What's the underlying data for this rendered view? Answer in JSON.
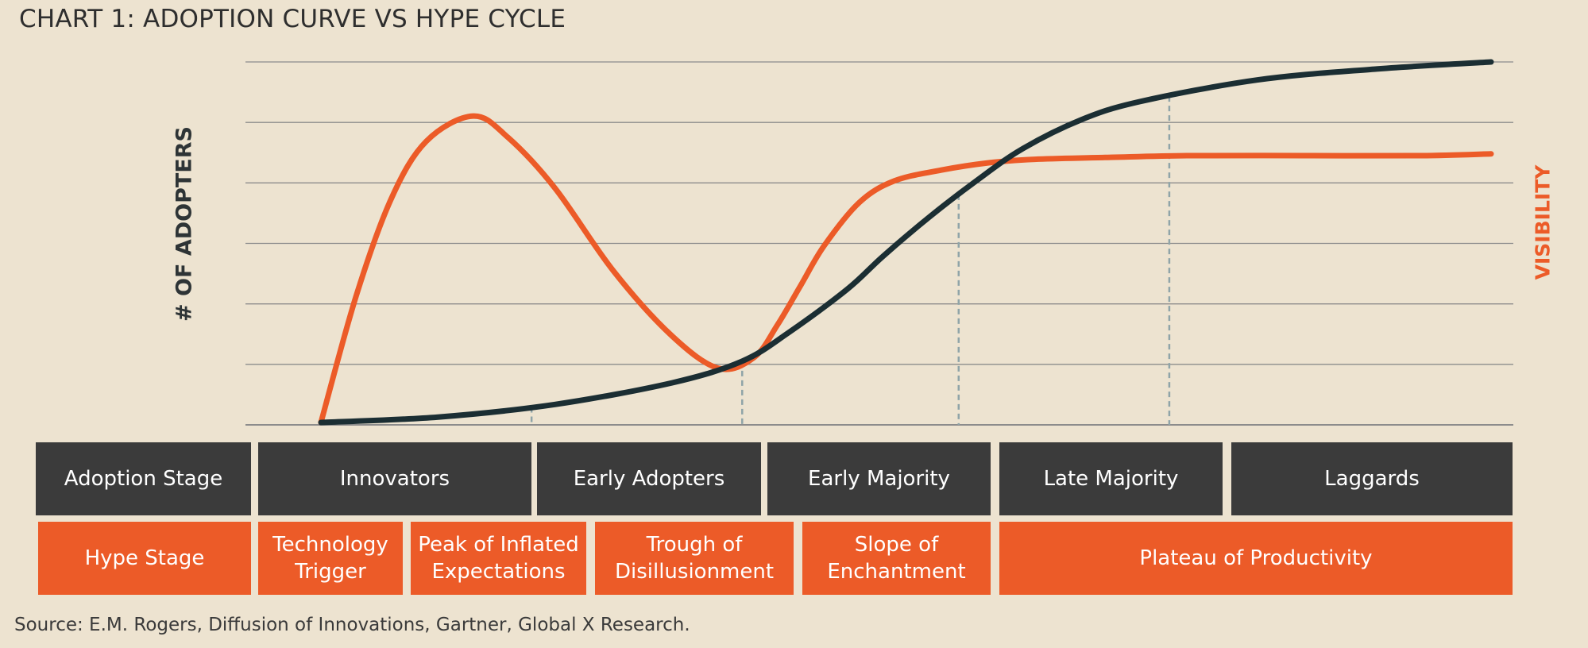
{
  "title": "CHART 1: ADOPTION CURVE VS HYPE CYCLE",
  "source": "Source: E.M. Rogers, Diffusion of Innovations, Gartner, Global X Research.",
  "colors": {
    "background": "#EDE3D0",
    "adoption": "#1B2E33",
    "hype": "#EC5B28",
    "dark_cell": "#3B3B3B",
    "divider": "#8FA4A8",
    "gridline": "#8C8C8C"
  },
  "chart_data": {
    "type": "line",
    "title": "CHART 1: ADOPTION CURVE VS HYPE CYCLE",
    "ylabel": "# OF ADOPTERS",
    "ylabel_right": "VISIBILITY",
    "x_range": [
      0,
      100
    ],
    "y_range": [
      0,
      100
    ],
    "gridlines": 6,
    "grid": true,
    "series": [
      {
        "name": "Adoption curve (# of adopters)",
        "x": [
          0,
          10,
          20,
          30,
          36,
          40,
          45,
          48,
          52,
          56,
          60,
          65,
          70,
          80,
          90,
          100
        ],
        "y": [
          0,
          1.5,
          5,
          11,
          17,
          25,
          37,
          46,
          57,
          67,
          76,
          84,
          89,
          95,
          98,
          100
        ]
      },
      {
        "name": "Hype cycle (visibility)",
        "x": [
          0,
          3,
          6,
          9,
          13,
          16,
          20,
          25,
          30,
          34,
          37,
          39,
          41,
          43,
          46,
          49,
          53,
          57,
          61,
          67,
          74,
          84,
          94,
          100
        ],
        "y": [
          0,
          35,
          62,
          78,
          85,
          79,
          65,
          42,
          24,
          15,
          18,
          27,
          38,
          49,
          61,
          67,
          70,
          72,
          73,
          73.5,
          74,
          74,
          74,
          74.5
        ]
      }
    ],
    "stage_dividers_x": [
      18,
      36,
      54.5,
      72.5
    ],
    "adoption_stages": [
      "Adoption Stage",
      "Innovators",
      "Early Adopters",
      "Early Majority",
      "Late Majority",
      "Laggards"
    ],
    "hype_stages": [
      "Hype Stage",
      "Technology Trigger",
      "Peak of Inflated Expectations",
      "Trough of Disillusionment",
      "Slope of Enchantment",
      "Plateau of Productivity"
    ]
  },
  "adoption_row": {
    "cells": [
      "Adoption Stage",
      "Innovators",
      "Early Adopters",
      "Early Majority",
      "Late Majority",
      "Laggards"
    ]
  },
  "hype_row": {
    "cells": [
      "Hype Stage",
      "Technology\nTrigger",
      "Peak of Inflated\nExpectations",
      "Trough of\nDisillusionment",
      "Slope of\nEnchantment",
      "Plateau of Productivity"
    ]
  }
}
